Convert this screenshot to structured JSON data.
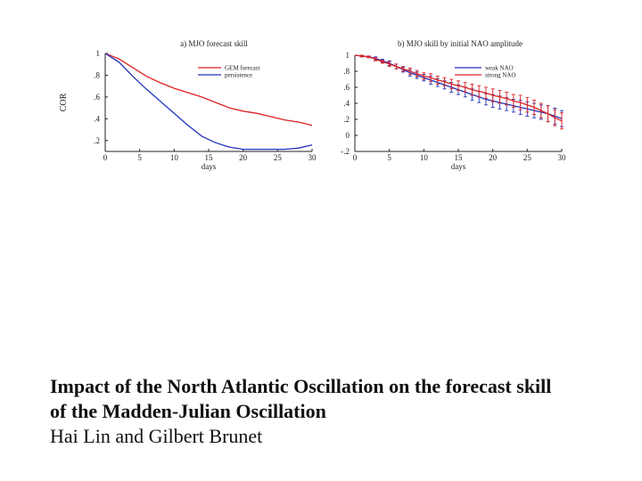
{
  "colors": {
    "red": "#dd2222",
    "blue": "#2233bb",
    "axis": "#222222"
  },
  "chart_data": [
    {
      "type": "line",
      "title": "a) MJO forecast skill",
      "xlabel": "days",
      "ylabel": "COR",
      "xlim": [
        0,
        30
      ],
      "ylim": [
        0.1,
        1.0
      ],
      "xticks": [
        0,
        5,
        10,
        15,
        20,
        25,
        30
      ],
      "yticks": [
        0.2,
        0.4,
        0.6,
        0.8,
        1
      ],
      "legend": "top-right",
      "series": [
        {
          "name": "GEM forecast",
          "color": "red",
          "x": [
            0,
            2,
            4,
            6,
            8,
            10,
            12,
            14,
            16,
            18,
            20,
            22,
            24,
            26,
            28,
            30
          ],
          "y": [
            1.0,
            0.95,
            0.87,
            0.79,
            0.73,
            0.68,
            0.64,
            0.6,
            0.55,
            0.5,
            0.47,
            0.45,
            0.42,
            0.39,
            0.37,
            0.34
          ]
        },
        {
          "name": "persistence",
          "color": "blue",
          "x": [
            0,
            2,
            4,
            6,
            8,
            10,
            12,
            14,
            16,
            18,
            20,
            22,
            24,
            26,
            28,
            30
          ],
          "y": [
            1.0,
            0.92,
            0.79,
            0.67,
            0.56,
            0.45,
            0.34,
            0.24,
            0.18,
            0.14,
            0.12,
            0.12,
            0.12,
            0.12,
            0.13,
            0.16
          ]
        }
      ]
    },
    {
      "type": "line",
      "title": "b) MJO skill by initial NAO amplitude",
      "xlabel": "days",
      "ylabel": "",
      "xlim": [
        0,
        30
      ],
      "ylim": [
        -0.2,
        1.0
      ],
      "xticks": [
        0,
        5,
        10,
        15,
        20,
        25,
        30
      ],
      "yticks": [
        -0.2,
        0,
        0.2,
        0.4,
        0.6,
        0.8,
        1
      ],
      "legend": "top-right",
      "series": [
        {
          "name": "weak NAO",
          "color": "blue",
          "error_bars": true,
          "x": [
            0,
            1,
            2,
            3,
            4,
            5,
            6,
            7,
            8,
            9,
            10,
            11,
            12,
            13,
            14,
            15,
            16,
            17,
            18,
            19,
            20,
            21,
            22,
            23,
            24,
            25,
            26,
            27,
            28,
            29,
            30
          ],
          "y": [
            1.0,
            0.99,
            0.98,
            0.96,
            0.93,
            0.9,
            0.86,
            0.82,
            0.78,
            0.75,
            0.72,
            0.69,
            0.66,
            0.63,
            0.6,
            0.57,
            0.54,
            0.51,
            0.48,
            0.45,
            0.43,
            0.41,
            0.39,
            0.37,
            0.35,
            0.33,
            0.31,
            0.29,
            0.27,
            0.24,
            0.21
          ],
          "err": [
            0.0,
            0.01,
            0.01,
            0.02,
            0.02,
            0.03,
            0.03,
            0.03,
            0.04,
            0.04,
            0.04,
            0.05,
            0.05,
            0.05,
            0.06,
            0.06,
            0.06,
            0.07,
            0.07,
            0.07,
            0.08,
            0.08,
            0.08,
            0.08,
            0.09,
            0.09,
            0.09,
            0.09,
            0.1,
            0.1,
            0.1
          ]
        },
        {
          "name": "strong NAO",
          "color": "red",
          "error_bars": true,
          "x": [
            0,
            1,
            2,
            3,
            4,
            5,
            6,
            7,
            8,
            9,
            10,
            11,
            12,
            13,
            14,
            15,
            16,
            17,
            18,
            19,
            20,
            21,
            22,
            23,
            24,
            25,
            26,
            27,
            28,
            29,
            30
          ],
          "y": [
            1.0,
            0.99,
            0.98,
            0.95,
            0.92,
            0.89,
            0.86,
            0.83,
            0.8,
            0.77,
            0.74,
            0.72,
            0.69,
            0.67,
            0.64,
            0.62,
            0.6,
            0.57,
            0.55,
            0.53,
            0.5,
            0.48,
            0.46,
            0.43,
            0.41,
            0.38,
            0.35,
            0.31,
            0.27,
            0.22,
            0.18
          ],
          "err": [
            0.0,
            0.01,
            0.01,
            0.02,
            0.02,
            0.03,
            0.03,
            0.03,
            0.04,
            0.04,
            0.04,
            0.05,
            0.05,
            0.05,
            0.06,
            0.06,
            0.06,
            0.07,
            0.07,
            0.07,
            0.08,
            0.08,
            0.08,
            0.08,
            0.09,
            0.09,
            0.09,
            0.09,
            0.1,
            0.1,
            0.1
          ]
        }
      ]
    }
  ],
  "caption": {
    "line1": "Impact of the North Atlantic Oscillation on the forecast skill",
    "line2": "of the Madden-Julian Oscillation",
    "authors": "Hai Lin and Gilbert Brunet"
  }
}
